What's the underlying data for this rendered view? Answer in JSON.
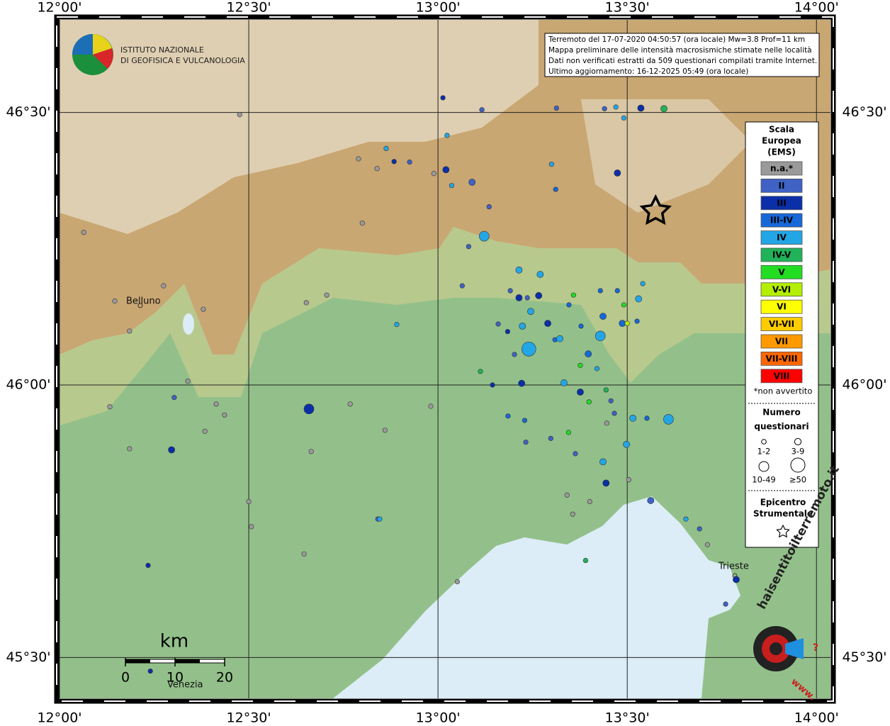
{
  "header": {
    "logo_lines": [
      "ISTITUTO NAZIONALE",
      "DI GEOFISICA E VULCANOLOGIA"
    ],
    "info_lines": [
      "Terremoto del 17-07-2020 04:50:57 (ora locale) Mw=3.8 Prof=11 km",
      "Mappa preliminare delle intensità macrosismiche stimate nelle località",
      "Dati non verificati estratti da 509 questionari compilati tramite Internet.",
      "Ultimo aggiornamento: 16-12-2025 05:49 (ora locale)"
    ]
  },
  "chart_data": {
    "type": "scatter",
    "xlim": [
      12,
      14.037
    ],
    "ylim": [
      45.425,
      46.67
    ],
    "xticks": [
      {
        "value": 12,
        "label": "12°00'"
      },
      {
        "value": 12.5,
        "label": "12°30'"
      },
      {
        "value": 13,
        "label": "13°00'"
      },
      {
        "value": 13.5,
        "label": "13°30'"
      },
      {
        "value": 14,
        "label": "14°00'"
      }
    ],
    "yticks": [
      {
        "value": 45.5,
        "label": "45°30'"
      },
      {
        "value": 46,
        "label": "46°00'"
      },
      {
        "value": 46.5,
        "label": "46°30'"
      }
    ],
    "grid": true,
    "series": [
      {
        "name": "n.a.*",
        "color": "#9a9a9a",
        "x": [
          12.476,
          12.79,
          12.839,
          12.064,
          12.146,
          12.185,
          12.275,
          12.38,
          12.339,
          12.133,
          12.185,
          12.384,
          12.414,
          12.436,
          12.5,
          12.507,
          12.646,
          12.652,
          12.706,
          12.768,
          12.86,
          12.981,
          12.665,
          12.8,
          12.989,
          13.341,
          13.356,
          13.401,
          13.504,
          13.446,
          13.051,
          13.712
        ],
        "y": [
          46.496,
          46.415,
          46.397,
          46.28,
          46.154,
          46.099,
          46.182,
          46.139,
          46.007,
          45.96,
          45.883,
          45.915,
          45.965,
          45.945,
          45.786,
          45.74,
          45.69,
          46.151,
          46.165,
          45.965,
          45.917,
          45.961,
          45.878,
          46.297,
          46.388,
          45.798,
          45.763,
          45.786,
          45.826,
          45.93,
          45.639,
          45.707
        ],
        "sizes": [
          "1-2",
          "1-2",
          "1-2",
          "1-2",
          "1-2",
          "1-2",
          "1-2",
          "1-2",
          "1-2",
          "1-2",
          "1-2",
          "1-2",
          "1-2",
          "1-2",
          "1-2",
          "1-2",
          "1-2",
          "1-2",
          "1-2",
          "1-2",
          "1-2",
          "1-2",
          "1-2",
          "1-2",
          "1-2",
          "1-2",
          "1-2",
          "1-2",
          "1-2",
          "1-2",
          "1-2",
          "1-2"
        ]
      },
      {
        "name": "II",
        "color": "#3f62c4",
        "x": [
          13.116,
          13.313,
          13.44,
          13.09,
          13.135,
          13.081,
          13.064,
          13.159,
          13.191,
          13.236,
          13.202,
          13.298,
          13.363,
          13.232,
          13.457,
          13.466,
          13.562,
          13.76,
          13.691,
          12.841,
          12.303,
          12.925
        ],
        "y": [
          46.505,
          46.508,
          46.507,
          46.372,
          46.327,
          46.254,
          46.182,
          46.112,
          46.173,
          46.16,
          46.056,
          45.902,
          45.874,
          45.895,
          45.971,
          45.948,
          45.788,
          45.598,
          45.736,
          45.754,
          45.977,
          46.409
        ],
        "sizes": [
          "1-2",
          "1-2",
          "1-2",
          "3-9",
          "1-2",
          "1-2",
          "1-2",
          "1-2",
          "1-2",
          "1-2",
          "1-2",
          "1-2",
          "1-2",
          "1-2",
          "1-2",
          "1-2",
          "3-9",
          "1-2",
          "1-2",
          "1-2",
          "1-2",
          "1-2"
        ]
      },
      {
        "name": "III",
        "color": "#0a2fa8",
        "x": [
          13.013,
          12.884,
          13.021,
          13.474,
          13.536,
          12.659,
          12.296,
          13.376,
          13.444,
          13.788,
          13.221,
          13.214,
          13.266,
          13.184,
          13.29,
          13.144,
          12.234,
          12.24
        ],
        "y": [
          46.527,
          46.41,
          46.395,
          46.389,
          46.508,
          45.956,
          45.881,
          45.987,
          45.82,
          45.643,
          46.003,
          46.16,
          46.164,
          46.098,
          46.113,
          46.0,
          45.669,
          45.475
        ],
        "sizes": [
          "1-2",
          "1-2",
          "3-9",
          "3-9",
          "3-9",
          "10-49",
          "3-9",
          "3-9",
          "3-9",
          "3-9",
          "3-9",
          "3-9",
          "3-9",
          "1-2",
          "3-9",
          "1-2",
          "1-2",
          "1-2"
        ]
      },
      {
        "name": "III-IV",
        "color": "#1668d8",
        "x": [
          13.311,
          13.397,
          13.346,
          13.378,
          13.436,
          13.487,
          13.526,
          13.552,
          13.185,
          13.229,
          13.429,
          13.474,
          13.309
        ],
        "y": [
          46.359,
          46.057,
          46.147,
          46.108,
          46.126,
          46.113,
          46.117,
          45.939,
          45.943,
          45.935,
          46.173,
          46.173,
          46.083
        ],
        "sizes": [
          "1-2",
          "3-9",
          "1-2",
          "1-2",
          "3-9",
          "3-9",
          "1-2",
          "1-2",
          "1-2",
          "1-2",
          "1-2",
          "1-2",
          "1-2"
        ]
      },
      {
        "name": "IV",
        "color": "#23a6e6",
        "x": [
          13.122,
          13.24,
          13.245,
          13.223,
          13.322,
          13.429,
          13.333,
          13.42,
          13.609,
          13.498,
          13.436,
          13.515,
          13.53,
          13.214,
          13.27,
          13.024,
          13.036,
          12.863,
          12.891,
          12.846,
          13.3,
          13.47,
          13.491,
          13.541,
          13.655
        ],
        "y": [
          46.273,
          46.066,
          46.135,
          46.108,
          46.085,
          46.09,
          46.004,
          46.03,
          45.937,
          45.891,
          45.859,
          45.939,
          46.158,
          46.211,
          46.203,
          46.458,
          46.366,
          46.434,
          46.111,
          45.754,
          46.405,
          46.51,
          46.49,
          46.186,
          45.754
        ],
        "sizes": [
          "10-49",
          "≥50",
          "3-9",
          "3-9",
          "3-9",
          "10-49",
          "3-9",
          "1-2",
          "10-49",
          "3-9",
          "3-9",
          "3-9",
          "3-9",
          "3-9",
          "3-9",
          "1-2",
          "1-2",
          "1-2",
          "1-2",
          "1-2",
          "1-2",
          "1-2",
          "1-2",
          "1-2",
          "1-2"
        ]
      },
      {
        "name": "IV-V",
        "color": "#21b25a",
        "x": [
          13.597,
          13.112,
          13.444,
          13.39
        ],
        "y": [
          46.507,
          46.025,
          45.991,
          45.678
        ],
        "sizes": [
          "3-9",
          "1-2",
          "1-2",
          "1-2"
        ]
      },
      {
        "name": "V",
        "color": "#22dd22",
        "x": [
          13.358,
          13.491,
          13.345,
          13.399,
          13.376
        ],
        "y": [
          46.165,
          46.147,
          45.913,
          45.969,
          46.036
        ],
        "sizes": [
          "1-2",
          "1-2",
          "1-2",
          "1-2",
          "1-2"
        ]
      },
      {
        "name": "V-VI",
        "color": "#b4ee00",
        "x": [
          13.5
        ],
        "y": [
          46.113
        ],
        "sizes": [
          "1-2"
        ]
      },
      {
        "name": "VI",
        "color": "#ffff00",
        "x": [],
        "y": [],
        "sizes": []
      },
      {
        "name": "VI-VII",
        "color": "#ffcc00",
        "x": [],
        "y": [],
        "sizes": []
      },
      {
        "name": "VII",
        "color": "#ff9900",
        "x": [],
        "y": [],
        "sizes": []
      },
      {
        "name": "VII-VIII",
        "color": "#ff6600",
        "x": [],
        "y": [],
        "sizes": []
      },
      {
        "name": "VIII",
        "color": "#ff0000",
        "x": [],
        "y": [],
        "sizes": []
      }
    ],
    "epicenter": {
      "x": 13.575,
      "y": 46.319
    },
    "legend": {
      "title_lines": [
        "Scala",
        "Europea",
        "(EMS)"
      ],
      "note": "*non avvertito",
      "size_title_lines": [
        "Numero",
        "questionari"
      ],
      "size_classes": [
        "1-2",
        "3-9",
        "10-49",
        "≥50"
      ],
      "epicenter_lines": [
        "Epicentro",
        "Strumentale"
      ]
    },
    "cities": [
      "Belluno",
      "Trieste",
      "Venezia"
    ],
    "scale_bar": {
      "unit": "km",
      "ticks": [
        0,
        10,
        20
      ]
    }
  },
  "badge": {
    "site": "haisentitoilterremoto.it",
    "prefix": "www.",
    "mark": "?"
  }
}
